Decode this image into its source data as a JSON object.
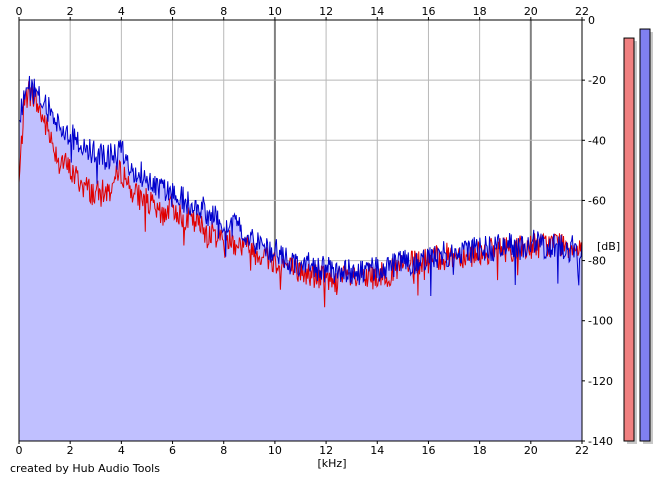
{
  "footer": {
    "credit": "created by Hub Audio Tools"
  },
  "chart_data": {
    "type": "line",
    "x_unit": "[kHz]",
    "y_unit": "[dB]",
    "x_ticks": [
      0,
      2,
      4,
      6,
      8,
      10,
      12,
      14,
      16,
      18,
      20,
      22
    ],
    "y_ticks": [
      0,
      -20,
      -40,
      -60,
      -80,
      -100,
      -120,
      -140
    ],
    "xlim": [
      0,
      22
    ],
    "ylim": [
      -140,
      0
    ],
    "grid": true,
    "colors": {
      "fill": "#c0c0ff",
      "red_series": "#e00000",
      "blue_series": "#0000cc",
      "meter_red": "#f08080",
      "meter_blue": "#8080f0"
    },
    "series": [
      {
        "color": "red",
        "x": [
          0.0,
          0.2,
          0.4,
          0.6,
          0.8,
          1.0,
          1.5,
          2.0,
          2.5,
          3.0,
          3.5,
          4.0,
          4.5,
          5.0,
          5.5,
          6.0,
          6.5,
          7.0,
          7.5,
          8.0,
          8.5,
          9.0,
          9.5,
          10.0,
          10.5,
          11.0,
          11.5,
          12.0,
          12.5,
          13.0,
          13.5,
          14.0,
          14.5,
          15.0,
          15.5,
          16.0,
          16.5,
          17.0,
          17.5,
          18.0,
          18.5,
          19.0,
          19.5,
          20.0,
          20.5,
          21.0,
          21.5,
          22.0
        ],
        "values": [
          -55,
          -27,
          -24,
          -26,
          -30,
          -34,
          -45,
          -50,
          -55,
          -58,
          -57,
          -50,
          -58,
          -60,
          -65,
          -62,
          -66,
          -68,
          -71,
          -72,
          -74,
          -76,
          -78,
          -80,
          -82,
          -84,
          -85,
          -86,
          -86,
          -86,
          -86,
          -85,
          -84,
          -82,
          -81,
          -80,
          -79,
          -78,
          -78,
          -77,
          -77,
          -76,
          -76,
          -75,
          -75,
          -74,
          -75,
          -75
        ]
      },
      {
        "color": "blue",
        "x": [
          0.0,
          0.2,
          0.4,
          0.6,
          0.8,
          1.0,
          1.5,
          2.0,
          2.5,
          3.0,
          3.5,
          4.0,
          4.5,
          5.0,
          5.5,
          6.0,
          6.5,
          7.0,
          7.5,
          8.0,
          8.5,
          9.0,
          9.5,
          10.0,
          10.5,
          11.0,
          11.5,
          12.0,
          12.5,
          13.0,
          13.5,
          14.0,
          14.5,
          15.0,
          15.5,
          16.0,
          16.5,
          17.0,
          17.5,
          18.0,
          18.5,
          19.0,
          19.5,
          20.0,
          20.5,
          21.0,
          21.5,
          22.0
        ],
        "values": [
          -35,
          -24,
          -22,
          -24,
          -26,
          -28,
          -34,
          -38,
          -42,
          -45,
          -46,
          -43,
          -50,
          -52,
          -56,
          -58,
          -60,
          -62,
          -65,
          -67,
          -69,
          -72,
          -75,
          -77,
          -80,
          -81,
          -82,
          -83,
          -84,
          -84,
          -84,
          -83,
          -82,
          -81,
          -80,
          -79,
          -78,
          -77,
          -77,
          -76,
          -76,
          -75,
          -75,
          -74,
          -75,
          -75,
          -76,
          -76
        ]
      }
    ],
    "meters": [
      {
        "color": "red",
        "top_db": -6
      },
      {
        "color": "blue",
        "top_db": -3
      }
    ]
  }
}
